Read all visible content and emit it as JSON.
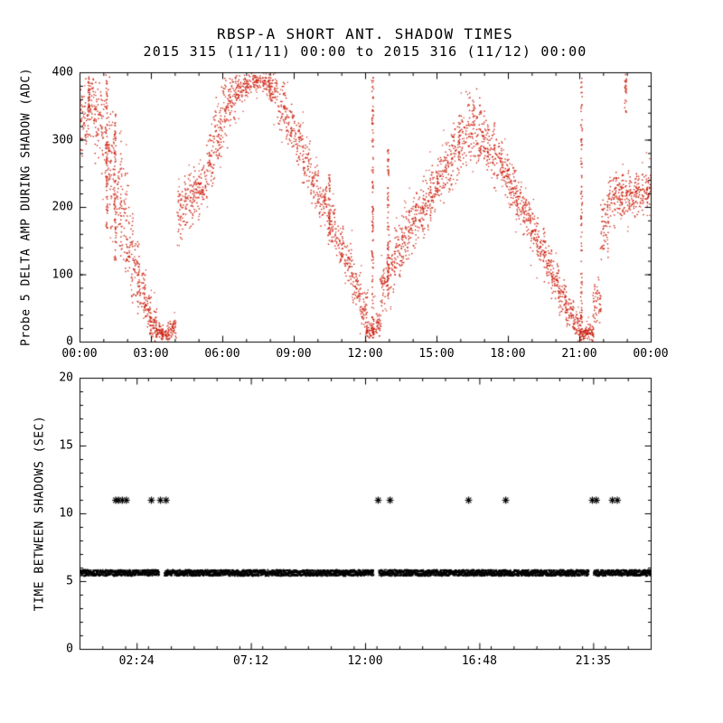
{
  "title": "RBSP-A SHORT ANT. SHADOW TIMES",
  "subtitle": "2015 315 (11/11) 00:00 to 2015 316 (11/12) 00:00",
  "colors": {
    "axis": "#000000",
    "scatter_red": "#cc2211",
    "scatter_black": "#000000",
    "background": "#ffffff"
  },
  "chart_data": [
    {
      "type": "scatter",
      "panel": "top",
      "title": "RBSP-A SHORT ANT. SHADOW TIMES",
      "subtitle": "2015 315 (11/11) 00:00 to 2015 316 (11/12) 00:00",
      "ylabel": "Probe 5 DELTA AMP DURING SHADOW (ADC)",
      "xlabel": "",
      "xrange_hours": [
        0,
        24
      ],
      "ylim": [
        0,
        400
      ],
      "grid": false,
      "legend": "none",
      "x_tick_hours": [
        0,
        3,
        6,
        9,
        12,
        15,
        18,
        21,
        24
      ],
      "x_tick_labels": [
        "00:00",
        "03:00",
        "06:00",
        "09:00",
        "12:00",
        "15:00",
        "18:00",
        "21:00",
        "00:00"
      ],
      "y_ticks": [
        0,
        100,
        200,
        300,
        400
      ],
      "point_color": "#cc2211",
      "shadow_minima_hours": [
        3.4,
        12.2,
        21.1
      ],
      "envelope_hours_lo_hi_adc": [
        [
          0.15,
          260,
          400
        ],
        [
          0.45,
          300,
          400
        ],
        [
          0.75,
          260,
          400
        ],
        [
          1.05,
          190,
          400
        ],
        [
          1.3,
          150,
          370
        ],
        [
          1.55,
          110,
          330
        ],
        [
          1.8,
          90,
          280
        ],
        [
          2.05,
          75,
          215
        ],
        [
          2.3,
          55,
          175
        ],
        [
          2.55,
          35,
          130
        ],
        [
          2.8,
          15,
          90
        ],
        [
          3.05,
          4,
          55
        ],
        [
          3.3,
          0,
          30
        ],
        [
          3.55,
          0,
          22
        ],
        [
          3.85,
          5,
          40
        ],
        [
          4.25,
          140,
          245
        ],
        [
          4.55,
          165,
          260
        ],
        [
          4.85,
          180,
          262
        ],
        [
          5.15,
          190,
          268
        ],
        [
          5.45,
          225,
          330
        ],
        [
          5.75,
          255,
          370
        ],
        [
          6.05,
          280,
          400
        ],
        [
          6.35,
          315,
          400
        ],
        [
          6.65,
          345,
          400
        ],
        [
          7.0,
          365,
          400
        ],
        [
          7.4,
          375,
          400
        ],
        [
          7.8,
          370,
          400
        ],
        [
          8.1,
          345,
          400
        ],
        [
          8.45,
          310,
          390
        ],
        [
          8.8,
          285,
          365
        ],
        [
          9.15,
          255,
          335
        ],
        [
          9.5,
          225,
          305
        ],
        [
          9.85,
          195,
          270
        ],
        [
          10.2,
          170,
          245
        ],
        [
          10.55,
          140,
          215
        ],
        [
          10.9,
          115,
          185
        ],
        [
          11.25,
          85,
          155
        ],
        [
          11.6,
          50,
          120
        ],
        [
          11.9,
          18,
          80
        ],
        [
          12.15,
          0,
          35
        ],
        [
          12.45,
          2,
          45
        ],
        [
          12.75,
          40,
          135
        ],
        [
          13.05,
          65,
          165
        ],
        [
          13.35,
          90,
          190
        ],
        [
          13.65,
          110,
          208
        ],
        [
          13.95,
          128,
          222
        ],
        [
          14.25,
          148,
          238
        ],
        [
          14.55,
          165,
          252
        ],
        [
          14.85,
          182,
          268
        ],
        [
          15.15,
          200,
          288
        ],
        [
          15.45,
          216,
          308
        ],
        [
          15.75,
          234,
          330
        ],
        [
          16.05,
          252,
          358
        ],
        [
          16.35,
          266,
          386
        ],
        [
          16.65,
          262,
          380
        ],
        [
          16.95,
          252,
          358
        ],
        [
          17.25,
          242,
          332
        ],
        [
          17.55,
          228,
          310
        ],
        [
          17.85,
          213,
          288
        ],
        [
          18.15,
          196,
          264
        ],
        [
          18.45,
          176,
          242
        ],
        [
          18.75,
          154,
          222
        ],
        [
          19.05,
          132,
          198
        ],
        [
          19.35,
          108,
          174
        ],
        [
          19.65,
          85,
          148
        ],
        [
          19.95,
          62,
          122
        ],
        [
          20.25,
          40,
          98
        ],
        [
          20.55,
          20,
          72
        ],
        [
          20.85,
          6,
          45
        ],
        [
          21.1,
          0,
          26
        ],
        [
          21.4,
          0,
          30
        ],
        [
          21.7,
          25,
          105
        ],
        [
          22.0,
          115,
          215
        ],
        [
          22.3,
          168,
          252
        ],
        [
          22.6,
          180,
          258
        ],
        [
          22.9,
          185,
          262
        ],
        [
          23.2,
          180,
          256
        ],
        [
          23.5,
          184,
          256
        ],
        [
          23.8,
          190,
          262
        ]
      ],
      "dense_streaks_hours_lo_hi_adc_n": [
        [
          0.35,
          340,
          400,
          30
        ],
        [
          1.1,
          170,
          400,
          70
        ],
        [
          1.45,
          120,
          340,
          60
        ],
        [
          10.45,
          150,
          250,
          45
        ],
        [
          12.27,
          0,
          398,
          110
        ],
        [
          12.92,
          60,
          300,
          70
        ],
        [
          21.05,
          0,
          395,
          100
        ],
        [
          22.9,
          340,
          400,
          26
        ]
      ]
    },
    {
      "type": "scatter",
      "panel": "bottom",
      "ylabel": "TIME BETWEEN SHADOWS (SEC)",
      "xlabel": "",
      "xrange_hours": [
        0,
        24
      ],
      "ylim": [
        0,
        20
      ],
      "grid": false,
      "legend": "none",
      "x_tick_hours": [
        2.4,
        7.2,
        12.0,
        16.8,
        21.5833
      ],
      "x_tick_labels": [
        "02:24",
        "07:12",
        "12:00",
        "16:48",
        "21:35"
      ],
      "y_ticks": [
        0,
        5,
        10,
        15,
        20
      ],
      "point_color": "#000000",
      "band": {
        "y_sec": 5.7,
        "halfwidth_sec": 0.22,
        "start_hour": 0.0,
        "end_hour": 24.0,
        "gaps_hours": [
          [
            3.3,
            3.52
          ],
          [
            12.3,
            12.52
          ],
          [
            21.35,
            21.55
          ]
        ]
      },
      "outlier_value_sec": 11,
      "outlier_hours": [
        1.5,
        1.62,
        1.78,
        1.95,
        3.0,
        3.38,
        3.62,
        12.53,
        13.03,
        16.33,
        17.89,
        21.53,
        21.7,
        22.37,
        22.58
      ]
    }
  ]
}
